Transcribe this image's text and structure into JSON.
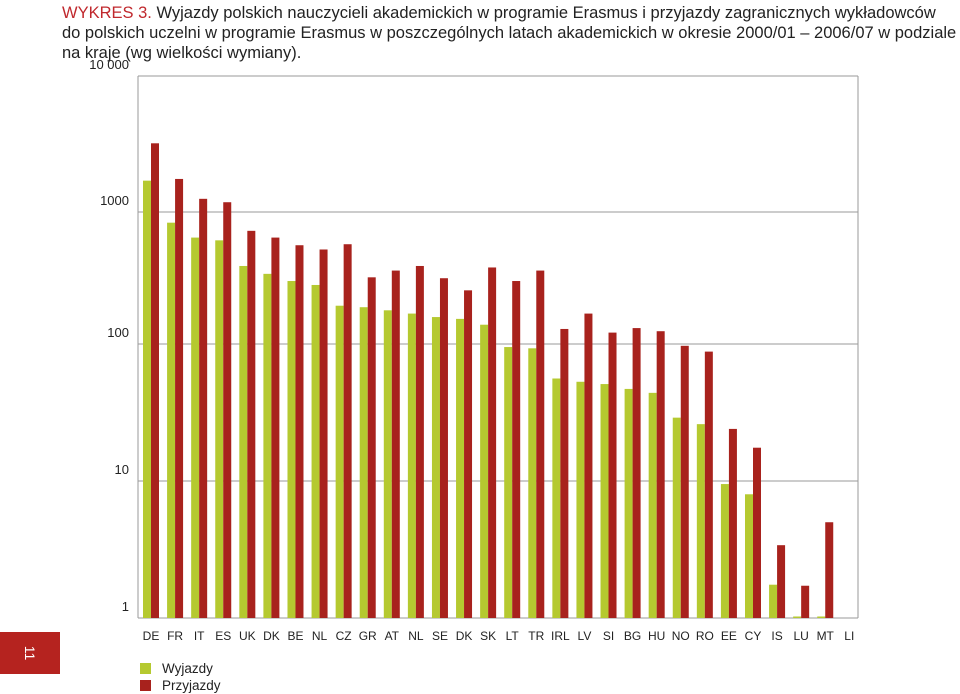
{
  "page": {
    "number": "11"
  },
  "chart_data": {
    "type": "bar",
    "title_prefix": "WYKRES 3.",
    "title": "Wyjazdy polskich nauczycieli akademickich w programie Erasmus i przyjazdy zagranicznych wykładowców do polskich uczelni w programie Erasmus w poszczególnych latach akademickich w okresie 2000/01 – 2006/07 w podziale na kraje (wg wielkości wymiany).",
    "xlabel": "",
    "ylabel": "",
    "yscale": "log",
    "ylim": [
      1,
      10000
    ],
    "yticks": [
      {
        "value": 1,
        "label": "1"
      },
      {
        "value": 10,
        "label": "10"
      },
      {
        "value": 100,
        "label": "100"
      },
      {
        "value": 1000,
        "label": "1000"
      },
      {
        "value": 10000,
        "label": "10 000"
      }
    ],
    "grid": true,
    "legend_position": "bottom-left",
    "categories": [
      "DE",
      "FR",
      "IT",
      "ES",
      "UK",
      "DK",
      "BE",
      "NL",
      "CZ",
      "GR",
      "AT",
      "NL",
      "SE",
      "DK",
      "SK",
      "LT",
      "TR",
      "IRL",
      "LV",
      "SI",
      "BG",
      "HU",
      "NO",
      "RO",
      "EE",
      "CY",
      "IS",
      "LU",
      "MT",
      "LI"
    ],
    "series": [
      {
        "name": "Wyjazdy",
        "color": "#b5c930",
        "values": [
          1700,
          830,
          640,
          610,
          390,
          340,
          300,
          280,
          195,
          190,
          180,
          170,
          160,
          155,
          140,
          95,
          93,
          56,
          53,
          51,
          47,
          44,
          29,
          26,
          9.5,
          8,
          1.75,
          1,
          1,
          0
        ]
      },
      {
        "name": "Przyjazdy",
        "color": "#a8221d",
        "values": [
          3200,
          1750,
          1250,
          1180,
          720,
          640,
          560,
          520,
          570,
          320,
          360,
          390,
          315,
          255,
          380,
          300,
          360,
          130,
          170,
          122,
          132,
          125,
          97,
          88,
          24,
          17.5,
          3.4,
          1.72,
          5,
          0
        ]
      }
    ]
  }
}
